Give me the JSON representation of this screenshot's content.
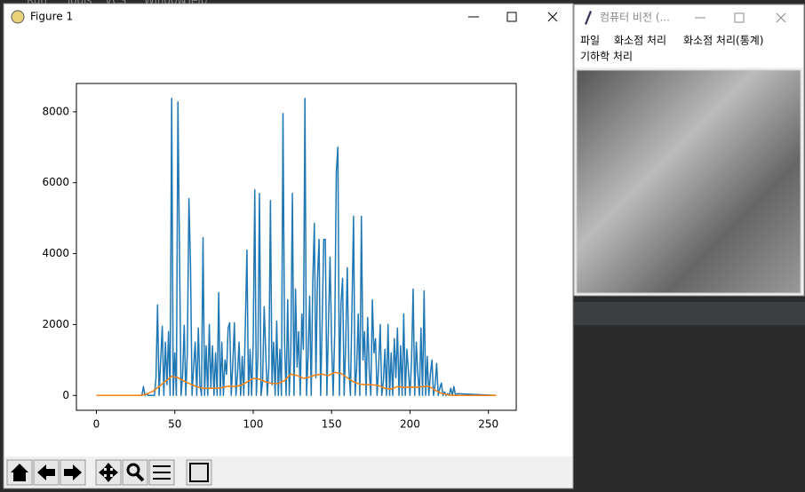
{
  "ide_menu": [
    "Run",
    "Tools",
    "VCS",
    "Window",
    "Help"
  ],
  "figure_window": {
    "title": "Figure 1"
  },
  "chart_data": {
    "type": "line",
    "xlim": [
      -12.75,
      267.75
    ],
    "ylim": [
      -419,
      8799
    ],
    "xticks": [
      0,
      50,
      100,
      150,
      200,
      250
    ],
    "yticks": [
      0,
      2000,
      4000,
      6000,
      8000
    ],
    "series": [
      {
        "color": "#1f77b4",
        "x": [
          0,
          28,
          29,
          30,
          31,
          32,
          33,
          34,
          35,
          36,
          37,
          38,
          39,
          40,
          41,
          42,
          43,
          44,
          45,
          46,
          47,
          48,
          49,
          50,
          51,
          52,
          53,
          54,
          55,
          56,
          57,
          58,
          59,
          60,
          61,
          62,
          63,
          64,
          65,
          66,
          67,
          68,
          69,
          70,
          71,
          72,
          73,
          74,
          75,
          76,
          77,
          78,
          79,
          80,
          81,
          82,
          83,
          84,
          85,
          86,
          87,
          88,
          89,
          90,
          91,
          92,
          93,
          94,
          95,
          96,
          97,
          98,
          99,
          100,
          101,
          102,
          103,
          104,
          105,
          106,
          107,
          108,
          109,
          110,
          111,
          112,
          113,
          114,
          115,
          116,
          117,
          118,
          119,
          120,
          121,
          122,
          123,
          124,
          125,
          126,
          127,
          128,
          129,
          130,
          131,
          132,
          133,
          134,
          135,
          136,
          137,
          138,
          139,
          140,
          141,
          142,
          143,
          144,
          145,
          146,
          147,
          148,
          149,
          150,
          151,
          152,
          153,
          154,
          155,
          156,
          157,
          158,
          159,
          160,
          161,
          162,
          163,
          164,
          165,
          166,
          167,
          168,
          169,
          170,
          171,
          172,
          173,
          174,
          175,
          176,
          177,
          178,
          179,
          180,
          181,
          182,
          183,
          184,
          185,
          186,
          187,
          188,
          189,
          190,
          191,
          192,
          193,
          194,
          195,
          196,
          197,
          198,
          199,
          200,
          201,
          202,
          203,
          204,
          205,
          206,
          207,
          208,
          209,
          210,
          211,
          212,
          213,
          214,
          215,
          216,
          217,
          218,
          219,
          220,
          221,
          222,
          223,
          224,
          225,
          226,
          227,
          228,
          229,
          230,
          255
        ],
        "values": [
          0,
          0,
          0,
          250,
          0,
          50,
          0,
          0,
          0,
          0,
          0,
          500,
          2550,
          0,
          1000,
          1950,
          0,
          1500,
          300,
          1800,
          0,
          8380,
          0,
          1200,
          0,
          8280,
          4000,
          0,
          600,
          1980,
          0,
          1200,
          5550,
          3720,
          0,
          800,
          1500,
          0,
          1900,
          300,
          0,
          4450,
          0,
          1400,
          0,
          2000,
          200,
          1400,
          0,
          1200,
          0,
          2900,
          0,
          1500,
          0,
          1000,
          600,
          1900,
          2050,
          0,
          900,
          2050,
          0,
          600,
          1500,
          0,
          1100,
          0,
          2000,
          4100,
          0,
          1300,
          0,
          1500,
          5800,
          0,
          1100,
          5700,
          0,
          400,
          2500,
          1200,
          0,
          800,
          5500,
          300,
          1500,
          0,
          2100,
          0,
          1300,
          0,
          7950,
          1500,
          0,
          2700,
          0,
          1300,
          5700,
          0,
          3000,
          800,
          1800,
          0,
          2300,
          1300,
          8380,
          0,
          1100,
          2800,
          0,
          3200,
          4850,
          500,
          3300,
          4400,
          0,
          2100,
          4400,
          4400,
          0,
          2000,
          3900,
          1500,
          0,
          1800,
          6300,
          7000,
          0,
          2600,
          3300,
          0,
          1500,
          3600,
          800,
          0,
          2500,
          5050,
          0,
          800,
          2300,
          0,
          5050,
          1000,
          1800,
          0,
          2200,
          700,
          0,
          2700,
          1200,
          1600,
          0,
          800,
          2000,
          0,
          400,
          1300,
          0,
          2000,
          0,
          1200,
          0,
          1600,
          500,
          1900,
          0,
          1400,
          0,
          2300,
          0,
          1300,
          700,
          0,
          1000,
          3000,
          0,
          1500,
          600,
          0,
          1900,
          0,
          2950,
          0,
          1100,
          0,
          600,
          1000,
          0,
          300,
          900,
          0,
          200,
          350,
          0,
          100,
          0,
          50,
          0,
          200,
          0,
          250,
          0,
          50,
          0
        ]
      },
      {
        "color": "#ff7f0e",
        "x": [
          0,
          28,
          32,
          36,
          40,
          44,
          48,
          52,
          56,
          60,
          64,
          68,
          72,
          76,
          80,
          84,
          88,
          92,
          96,
          100,
          104,
          108,
          112,
          116,
          120,
          124,
          128,
          132,
          136,
          140,
          144,
          148,
          152,
          156,
          160,
          164,
          168,
          172,
          176,
          180,
          184,
          188,
          192,
          196,
          200,
          204,
          208,
          212,
          216,
          220,
          224,
          228,
          255
        ],
        "values": [
          0,
          0,
          40,
          120,
          250,
          400,
          540,
          500,
          400,
          320,
          250,
          200,
          200,
          200,
          220,
          260,
          250,
          280,
          380,
          480,
          460,
          380,
          340,
          340,
          420,
          600,
          560,
          480,
          520,
          580,
          600,
          560,
          650,
          620,
          500,
          380,
          320,
          300,
          300,
          280,
          200,
          180,
          250,
          230,
          240,
          230,
          250,
          260,
          150,
          60,
          20,
          0,
          0
        ]
      }
    ]
  },
  "app_window": {
    "title": "컴퓨터 비전 (...",
    "menu": [
      "파일",
      "화소점 처리",
      "화소점 처리(통계)",
      "기하학 처리"
    ]
  }
}
